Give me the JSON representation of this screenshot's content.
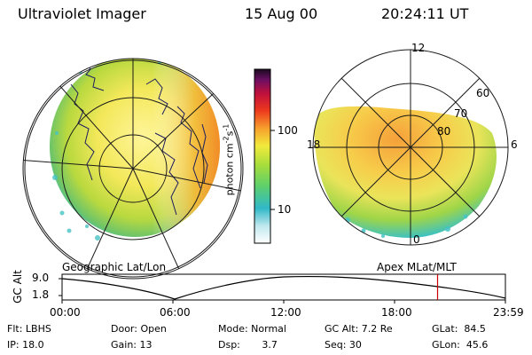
{
  "header": {
    "instrument": "Ultraviolet Imager",
    "date": "15 Aug 00",
    "time": "20:24:11 UT"
  },
  "colorbar": {
    "tick_100": "100",
    "tick_10": "10",
    "label_main": "photon cm",
    "label_exp1": "-2",
    "label_mid": "s",
    "label_exp2": "-1"
  },
  "panels": {
    "left_caption": "Geographic Lat/Lon",
    "right_caption": "Apex MLat/MLT",
    "right_labels": {
      "mlt_12": "12",
      "mlt_18": "18",
      "mlt_6": "6",
      "mlt_0": "0",
      "lat_60": "60",
      "lat_70": "70",
      "lat_80": "80"
    }
  },
  "timeline": {
    "ylabel": "GC Alt",
    "ytick_high": "9.0",
    "ytick_low": "1.8",
    "xticks": [
      "00:00",
      "06:00",
      "12:00",
      "18:00",
      "23:59"
    ],
    "current_time_fraction": 0.847
  },
  "info": {
    "row1": [
      "Flt: LBHS",
      "Door: Open",
      "Mode: Normal",
      "GC Alt: 7.2 Re",
      "GLat:  84.5"
    ],
    "row2": [
      "IP: 18.0",
      "Gain: 13",
      "Dsp:       3.7",
      "Seq: 30",
      "GLon:  45.6"
    ]
  },
  "colors": {
    "background": "#ffffff",
    "foreground": "#000000",
    "marker": "#cc0000"
  }
}
